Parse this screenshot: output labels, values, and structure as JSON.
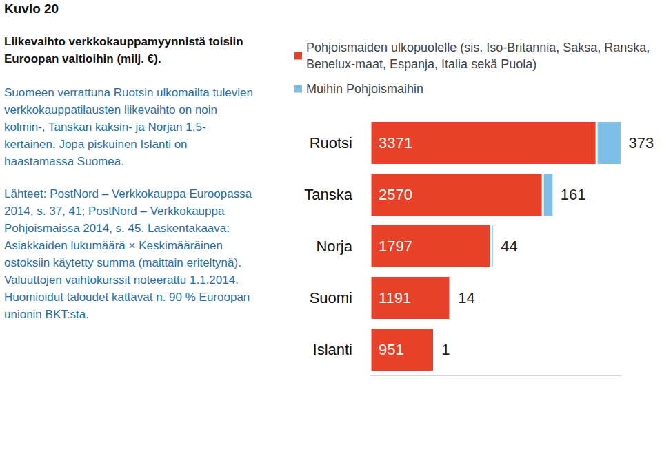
{
  "chart_data": {
    "type": "bar",
    "title": "Kuvio 20",
    "subtitle": "Liikevaihto verkkokauppamyynnistä toisiin Euroopan valtioihin (milj. €).",
    "annotations": [
      "Suomeen verrattuna Ruotsin ulkomailta tulevien verkkokauppatilausten liikevaihto on noin kolmin-, Tanskan kaksin- ja Norjan 1,5-kertainen. Jopa piskuinen Islanti on haastamassa Suomea.",
      "Lähteet: PostNord – Verkkokauppa Euroopassa 2014, s. 37, 41; PostNord – Verkkokauppa Pohjoismaissa 2014, s. 45. Laskentakaava: Asiakkaiden lukumäärä × Keskimääräinen ostoksiin käytetty summa (maittain eriteltynä). Valuuttojen vaihtokurssit noteerattu 1.1.2014. Huomioidut taloudet kattavat n. 90 % Euroopan unionin BKT:sta."
    ],
    "orientation": "horizontal",
    "stacked": true,
    "data_labels": true,
    "tick_labels": "y",
    "grid": false,
    "legend": "top",
    "categories": [
      "Ruotsi",
      "Tanska",
      "Norja",
      "Suomi",
      "Islanti"
    ],
    "series": [
      {
        "name": "Pohjoismaiden ulkopuolelle (sis. Iso-Britannia, Saksa, Ranska, Benelux-maat, Espanja, Italia sekä Puola)",
        "color": "#e8412a",
        "values": [
          3371,
          2570,
          1797,
          1191,
          951
        ]
      },
      {
        "name": "Muihin Pohjoismaihin",
        "color": "#7dbfe6",
        "values": [
          373,
          161,
          44,
          14,
          1
        ]
      }
    ],
    "xlim": [
      0,
      3750
    ]
  }
}
